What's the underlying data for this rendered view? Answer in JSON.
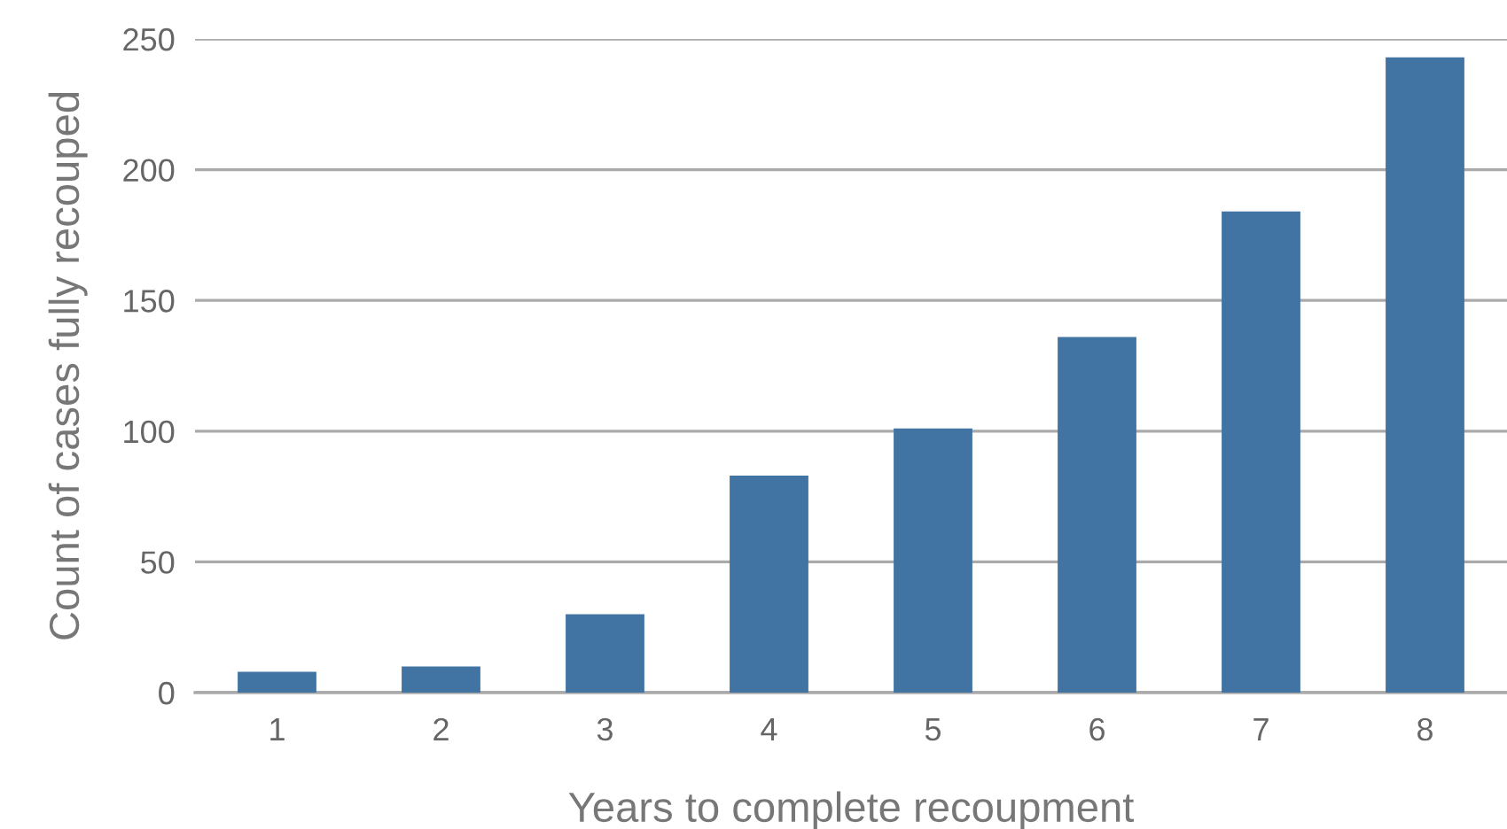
{
  "chart_data": {
    "type": "bar",
    "xlabel": "Years to complete recoupment",
    "ylabel": "Count of cases fully recouped",
    "categories": [
      "1",
      "2",
      "3",
      "4",
      "5",
      "6",
      "7",
      "8"
    ],
    "values": [
      8,
      10,
      30,
      83,
      101,
      136,
      184,
      243
    ],
    "color": "#4174a3",
    "ylim": [
      0,
      250
    ],
    "yticks": [
      0,
      50,
      100,
      150,
      200,
      250
    ],
    "grid": "y"
  }
}
